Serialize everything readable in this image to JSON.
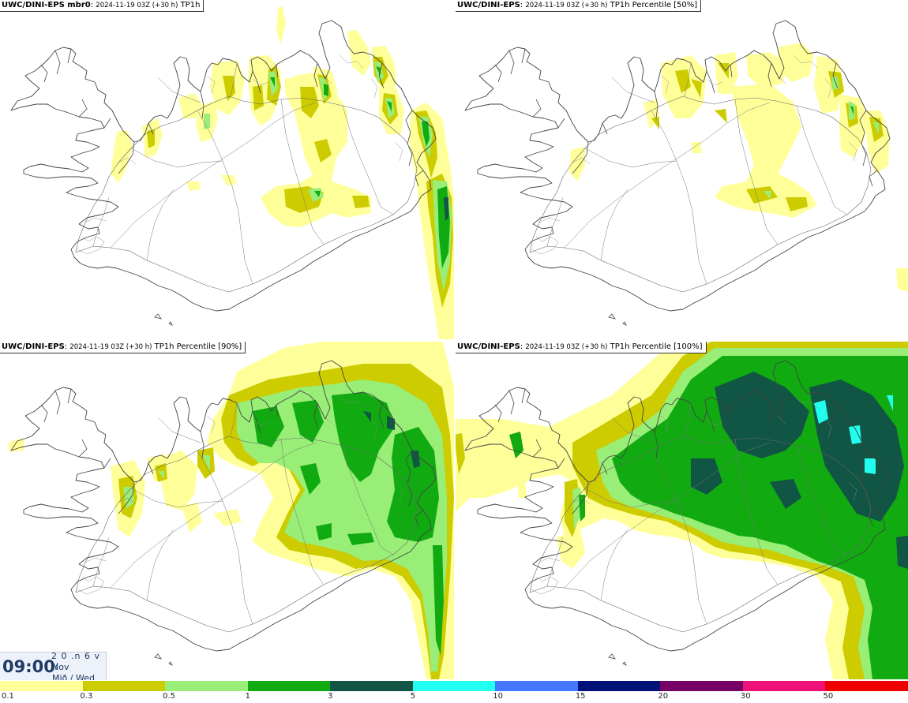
{
  "panels": [
    {
      "model": "UWC/DINI-EPS mbr0",
      "date": "2024-11-19 03Z (+30 h)",
      "field": "TP1h"
    },
    {
      "model": "UWC/DINI-EPS",
      "date": "2024-11-19 03Z (+30 h)",
      "field": "TP1h Percentile [50%]"
    },
    {
      "model": "UWC/DINI-EPS",
      "date": "2024-11-19 03Z (+30 h)",
      "field": "TP1h Percentile [90%]"
    },
    {
      "model": "UWC/DINI-EPS",
      "date": "2024-11-19 03Z (+30 h)",
      "field": "TP1h Percentile [100%]"
    }
  ],
  "clock": {
    "time": "09:00",
    "days": "2 0 .n 6 v ./",
    "month": "Nov",
    "weekday": "Mið / Wed"
  },
  "legend": {
    "colors": [
      "#ffff99",
      "#cccc00",
      "#99ee77",
      "#11aa11",
      "#115544",
      "#22ffee",
      "#4477ff",
      "#001177",
      "#770066",
      "#ee1177",
      "#ee0000"
    ],
    "ticks": [
      "0.1",
      "0.3",
      "0.5",
      "1",
      "3",
      "5",
      "10",
      "15",
      "20",
      "30",
      "50"
    ]
  },
  "shading": {
    "c1": "#ffff99",
    "c2": "#cccc00",
    "c3": "#99ee77",
    "c4": "#11aa11",
    "c5": "#115544",
    "c6": "#22ffee"
  }
}
